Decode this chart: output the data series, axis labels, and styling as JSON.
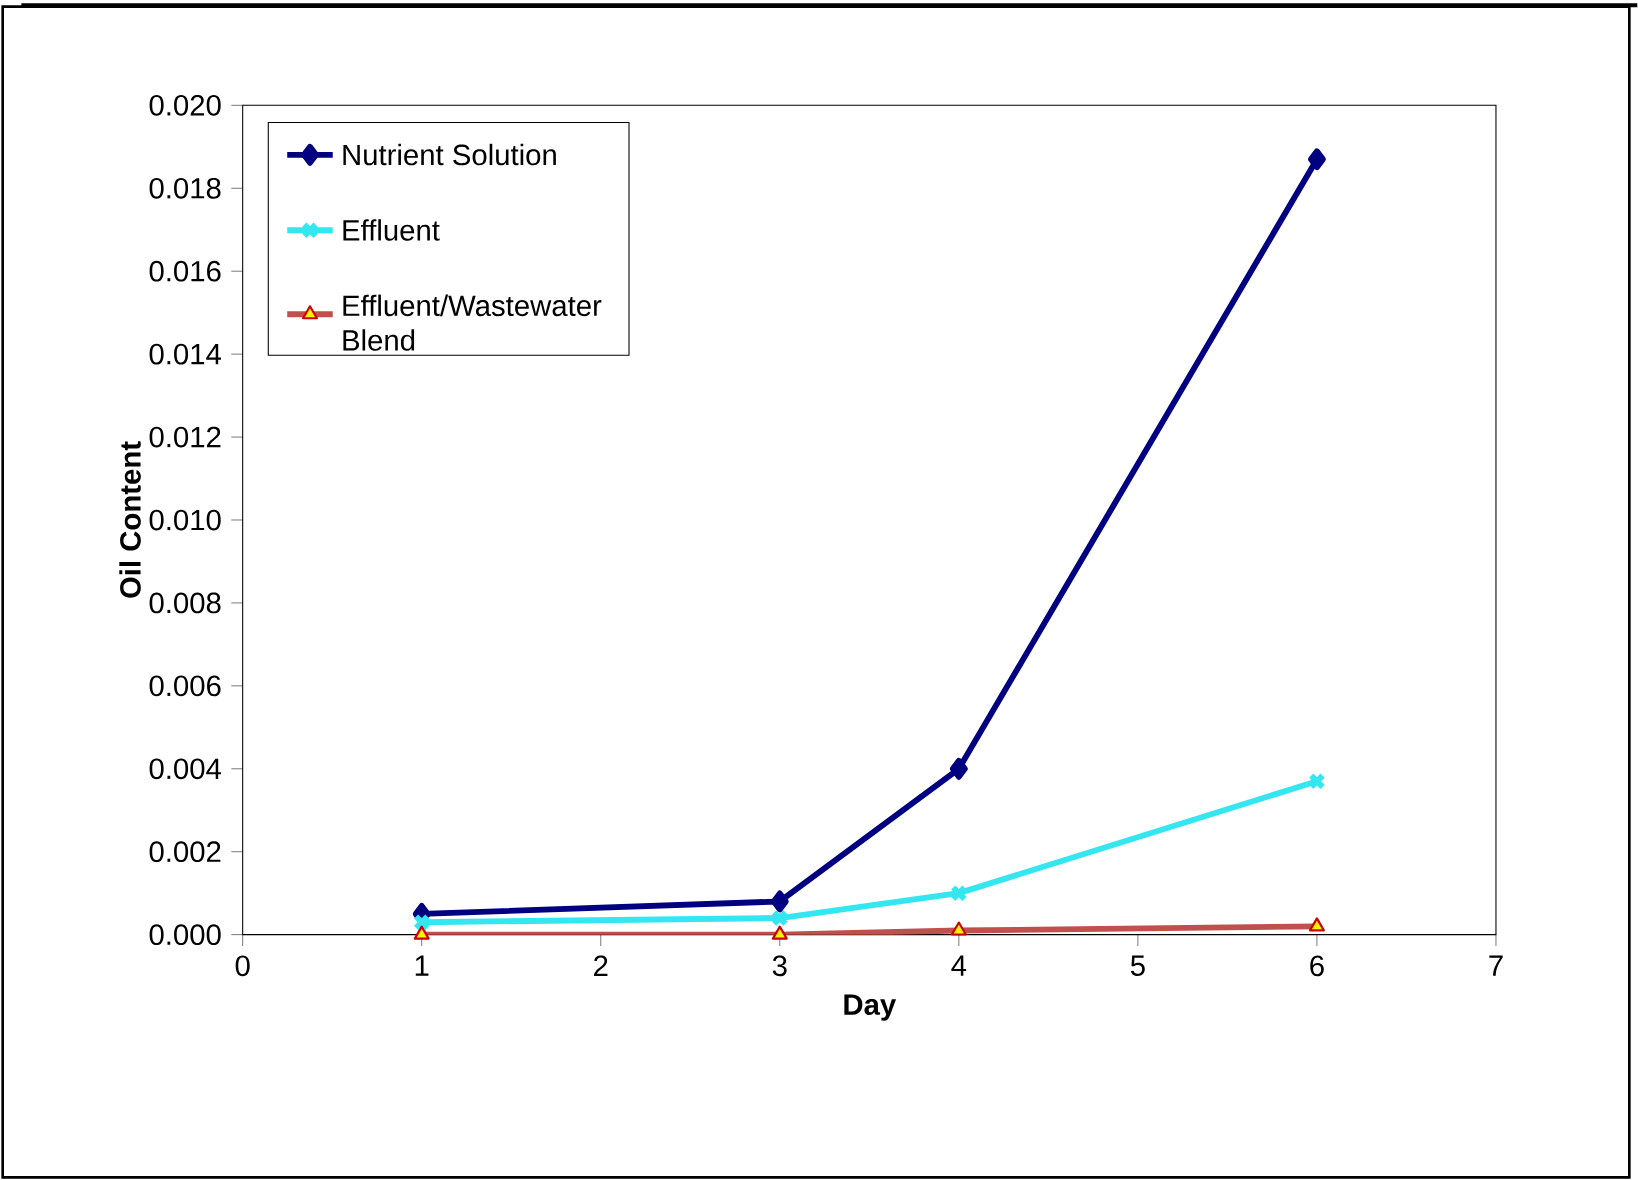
{
  "chart_data": {
    "type": "line",
    "xlabel": "Day",
    "ylabel": "Oil Content",
    "x": [
      1,
      3,
      4,
      6
    ],
    "series": [
      {
        "name": "Nutrient Solution",
        "color": "#000080",
        "marker": "diamond",
        "values": [
          0.0005,
          0.0008,
          0.004,
          0.0187
        ]
      },
      {
        "name": "Effluent",
        "color": "#33e6f0",
        "marker": "cross",
        "values": [
          0.0003,
          0.0004,
          0.001,
          0.0037
        ]
      },
      {
        "name": "Effluent/Wastewater Blend",
        "color": "#c0504d",
        "marker": "triangle",
        "values": [
          0.0,
          0.0,
          0.0001,
          0.0002
        ]
      }
    ],
    "xlim": [
      0,
      7
    ],
    "xticks": [
      0,
      1,
      2,
      3,
      4,
      5,
      6,
      7
    ],
    "ylim": [
      0,
      0.02
    ],
    "yticks": [
      {
        "value": 0,
        "label": "0.000"
      },
      {
        "value": 0.002,
        "label": "0.002"
      },
      {
        "value": 0.004,
        "label": "0.004"
      },
      {
        "value": 0.006,
        "label": "0.006"
      },
      {
        "value": 0.008,
        "label": "0.008"
      },
      {
        "value": 0.01,
        "label": "0.010"
      },
      {
        "value": 0.012,
        "label": "0.012"
      },
      {
        "value": 0.014,
        "label": "0.014"
      },
      {
        "value": 0.016,
        "label": "0.016"
      },
      {
        "value": 0.018,
        "label": "0.018"
      },
      {
        "value": 0.02,
        "label": "0.020"
      }
    ],
    "grid": false,
    "legend": "top left",
    "line_style": "solid"
  }
}
